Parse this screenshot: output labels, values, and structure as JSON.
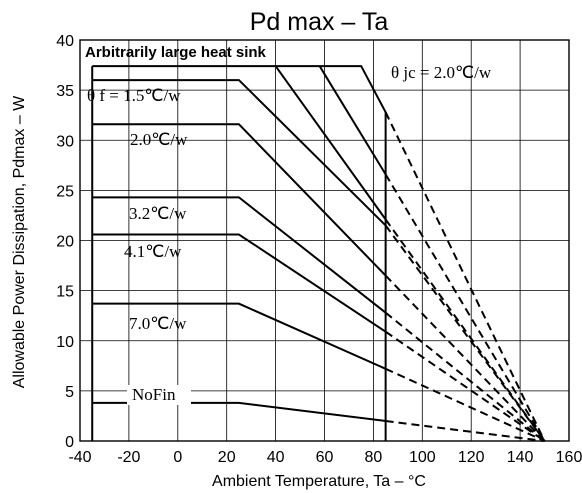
{
  "chart_data": {
    "type": "line",
    "title": "Pd max  –  Ta",
    "xlabel": "Ambient Temperature, Ta – °C",
    "ylabel": "Allowable Power Dissipation, Pdmax – W",
    "xlim": [
      -40,
      160
    ],
    "ylim": [
      0,
      40
    ],
    "xticks": [
      "-40",
      "-20",
      "0",
      "20",
      "40",
      "60",
      "80",
      "100",
      "120",
      "140",
      "160"
    ],
    "yticks": [
      "0",
      "5",
      "10",
      "15",
      "20",
      "25",
      "30",
      "35",
      "40"
    ],
    "grid": true,
    "line_color": "#000000",
    "vertical_limit_x": 85,
    "convergence_point": [
      150,
      0
    ],
    "annotations": {
      "heat_sink": "Arbitrarily large heat sink",
      "theta_jc": "θ jc = 2.0℃/w",
      "theta_f": "θ f = 1.5℃/w",
      "fin_20": "2.0℃/w",
      "fin_32": "3.2℃/w",
      "fin_41": "4.1℃/w",
      "fin_70": "7.0℃/w",
      "no_fin": "NoFin"
    },
    "series": [
      {
        "label_key": "heat_sink",
        "x": [
          -35,
          75,
          85
        ],
        "y": [
          37.4,
          37.4,
          32.8
        ]
      },
      {
        "label_key": "theta_f",
        "x": [
          -35,
          25,
          85
        ],
        "y": [
          36,
          36,
          21.5
        ]
      },
      {
        "label_key": "fin_20",
        "x": [
          -35,
          25,
          85
        ],
        "y": [
          31.6,
          31.6,
          16.5
        ]
      },
      {
        "label_key": "fin_32",
        "x": [
          -35,
          25,
          85
        ],
        "y": [
          24.3,
          24.3,
          12.8
        ]
      },
      {
        "label_key": "fin_41",
        "x": [
          -35,
          25,
          85
        ],
        "y": [
          20.6,
          20.6,
          10.9
        ]
      },
      {
        "label_key": "fin_70",
        "x": [
          -35,
          25,
          85
        ],
        "y": [
          13.7,
          13.7,
          7.2
        ]
      },
      {
        "label_key": "no_fin",
        "x": [
          -35,
          25,
          85
        ],
        "y": [
          3.8,
          3.8,
          2
        ]
      }
    ],
    "extra_lines": [
      {
        "x": [
          40,
          85
        ],
        "y": [
          37.4,
          22.1
        ]
      },
      {
        "x": [
          58,
          85
        ],
        "y": [
          37.4,
          26.6
        ]
      }
    ],
    "dashed_extrapolations": [
      {
        "x": [
          85,
          150
        ],
        "y": [
          32.8,
          0
        ]
      },
      {
        "x": [
          85,
          150
        ],
        "y": [
          26.6,
          0
        ]
      },
      {
        "x": [
          85,
          150
        ],
        "y": [
          22.1,
          0
        ]
      },
      {
        "x": [
          85,
          150
        ],
        "y": [
          21.5,
          0
        ]
      },
      {
        "x": [
          85,
          150
        ],
        "y": [
          16.5,
          0
        ]
      },
      {
        "x": [
          85,
          150
        ],
        "y": [
          12.8,
          0
        ]
      },
      {
        "x": [
          85,
          150
        ],
        "y": [
          10.9,
          0
        ]
      },
      {
        "x": [
          85,
          150
        ],
        "y": [
          7.2,
          0
        ]
      },
      {
        "x": [
          85,
          150
        ],
        "y": [
          2,
          0
        ]
      }
    ]
  }
}
